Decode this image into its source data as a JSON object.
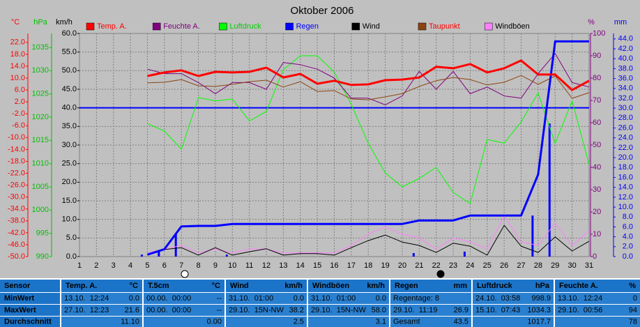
{
  "chart_data": {
    "type": "line",
    "title": "Oktober 2006",
    "x": [
      1,
      2,
      3,
      4,
      5,
      6,
      7,
      8,
      9,
      10,
      11,
      12,
      13,
      14,
      15,
      16,
      17,
      18,
      19,
      20,
      21,
      22,
      23,
      24,
      25,
      26,
      27,
      28,
      29,
      30,
      31
    ],
    "xlim": [
      1,
      31
    ],
    "xticks": [
      1,
      2,
      3,
      4,
      5,
      6,
      7,
      8,
      9,
      10,
      11,
      12,
      13,
      14,
      15,
      16,
      17,
      18,
      19,
      20,
      21,
      22,
      23,
      24,
      25,
      26,
      27,
      28,
      29,
      30,
      31
    ],
    "grid": true,
    "axes": [
      {
        "label": "°C",
        "color": "#ff0000",
        "ylim": [
          -50,
          25
        ],
        "yticks": [
          {
            "value": 22,
            "label": "22.0"
          },
          {
            "value": 18,
            "label": "18.0"
          },
          {
            "value": 14,
            "label": "14.0"
          },
          {
            "value": 10,
            "label": "10.0"
          },
          {
            "value": 6,
            "label": "6.0"
          },
          {
            "value": 2,
            "label": "2.0"
          },
          {
            "value": -2,
            "label": "-2.0"
          },
          {
            "value": -6,
            "label": "-6.0"
          },
          {
            "value": -10,
            "label": "-10.0"
          },
          {
            "value": -14,
            "label": "-14.0"
          },
          {
            "value": -18,
            "label": "-18.0"
          },
          {
            "value": -22,
            "label": "-22.0"
          },
          {
            "value": -26,
            "label": "-26.0"
          },
          {
            "value": -30,
            "label": "-30.0"
          },
          {
            "value": -34,
            "label": "-34.0"
          },
          {
            "value": -38,
            "label": "-38.0"
          },
          {
            "value": -42,
            "label": "-42.0"
          },
          {
            "value": -46,
            "label": "-46.0"
          },
          {
            "value": -50,
            "label": "-50.0"
          }
        ]
      },
      {
        "label": "hPa",
        "color": "#00c000",
        "ylim": [
          990,
          1038
        ],
        "yticks": [
          1035,
          1030,
          1025,
          1020,
          1015,
          1010,
          1005,
          1000,
          995,
          990
        ]
      },
      {
        "label": "km/h",
        "color": "#000000",
        "ylim": [
          0,
          60
        ],
        "grid": true,
        "yticks": [
          {
            "value": 60,
            "label": "60.0"
          },
          {
            "value": 55,
            "label": "55.0"
          },
          {
            "value": 50,
            "label": "50.0"
          },
          {
            "value": 45,
            "label": "45.0"
          },
          {
            "value": 40,
            "label": "40.0"
          },
          {
            "value": 35,
            "label": "35.0"
          },
          {
            "value": 30,
            "label": "30.0"
          },
          {
            "value": 25,
            "label": "25.0"
          },
          {
            "value": 20,
            "label": "20.0"
          },
          {
            "value": 15,
            "label": "15.0"
          },
          {
            "value": 10,
            "label": "10.0"
          },
          {
            "value": 5,
            "label": "5.0"
          },
          {
            "value": 0,
            "label": "0.0"
          }
        ]
      },
      {
        "label": "%",
        "color": "#800080",
        "ylim": [
          0,
          100
        ],
        "yticks": [
          100,
          90,
          80,
          70,
          60,
          50,
          40,
          30,
          20,
          10,
          0
        ]
      },
      {
        "label": "mm",
        "color": "#0000ff",
        "ylim": [
          0,
          45.1
        ],
        "yticks": [
          {
            "value": 44,
            "label": "44.0"
          },
          {
            "value": 42,
            "label": "42.0"
          },
          {
            "value": 40,
            "label": "40.0"
          },
          {
            "value": 38,
            "label": "38.0"
          },
          {
            "value": 36,
            "label": "36.0"
          },
          {
            "value": 34,
            "label": "34.0"
          },
          {
            "value": 32,
            "label": "32.0"
          },
          {
            "value": 30,
            "label": "30.0"
          },
          {
            "value": 28,
            "label": "28.0"
          },
          {
            "value": 26,
            "label": "26.0"
          },
          {
            "value": 24,
            "label": "24.0"
          },
          {
            "value": 22,
            "label": "22.0"
          },
          {
            "value": 20,
            "label": "20.0"
          },
          {
            "value": 18,
            "label": "18.0"
          },
          {
            "value": 16,
            "label": "16.0"
          },
          {
            "value": 14,
            "label": "14.0"
          },
          {
            "value": 12,
            "label": "12.0"
          },
          {
            "value": 10,
            "label": "10.0"
          },
          {
            "value": 8,
            "label": "8.0"
          },
          {
            "value": 6,
            "label": "6.0"
          },
          {
            "value": 4,
            "label": "4.0"
          },
          {
            "value": 2,
            "label": "2.0"
          },
          {
            "value": 0,
            "label": "0.0"
          }
        ]
      }
    ],
    "reference_line": {
      "axis": "km/h",
      "value": 40,
      "color": "#0000ff"
    },
    "bars": {
      "axis": "mm",
      "color": "#0000ff",
      "values": [
        null,
        null,
        null,
        null,
        0.4,
        1.1,
        4.6,
        null,
        null,
        0.4,
        null,
        null,
        null,
        null,
        null,
        null,
        null,
        null,
        null,
        null,
        0.7,
        null,
        null,
        1.0,
        null,
        null,
        null,
        8.3,
        26.9,
        null,
        null
      ]
    },
    "series": [
      {
        "name": "Temp. A.",
        "axis": "°C",
        "color": "#ff0000",
        "text_color": "#ff0000",
        "width": 3,
        "values": [
          null,
          null,
          null,
          null,
          10.7,
          11.9,
          12.6,
          10.7,
          12.1,
          11.9,
          12.1,
          13.5,
          10.2,
          11.4,
          8.1,
          9.1,
          7.7,
          7.9,
          9.3,
          9.5,
          10.2,
          13.8,
          13.3,
          14.7,
          11.9,
          13.3,
          15.9,
          11.2,
          11.2,
          6.0,
          9.1
        ]
      },
      {
        "name": "Feuchte A.",
        "axis": "%",
        "color": "#800080",
        "text_color": "#800080",
        "width": 1,
        "values": [
          null,
          null,
          null,
          null,
          84,
          82,
          82,
          78,
          73,
          78,
          78,
          75,
          87,
          86,
          84,
          80,
          71,
          71,
          68,
          72,
          83,
          75,
          83,
          73,
          76,
          72,
          71,
          82,
          91,
          78,
          76
        ]
      },
      {
        "name": "Luftdruck",
        "axis": "hPa",
        "color": "#00ff00",
        "text_color": "#00d000",
        "width": 1,
        "values": [
          null,
          null,
          null,
          null,
          1018.6,
          1017.0,
          1013.1,
          1024.2,
          1023.5,
          1023.9,
          1019.2,
          1021.2,
          1030.2,
          1033.2,
          1033.2,
          1029.7,
          1022.7,
          1014.4,
          1008.0,
          1005.0,
          1006.8,
          1009.2,
          1003.8,
          1001.4,
          1015.2,
          1014.4,
          1019.0,
          1025.2,
          1014.3,
          1023.5,
          1009.8
        ]
      },
      {
        "name": "Regen",
        "axis": "mm",
        "color": "#0000ff",
        "text_color": "#0000ff",
        "width": 3,
        "values": [
          null,
          null,
          null,
          null,
          0.4,
          1.5,
          6.1,
          6.2,
          6.2,
          6.6,
          6.6,
          6.6,
          6.6,
          6.6,
          6.6,
          6.6,
          6.6,
          6.6,
          6.6,
          6.6,
          7.3,
          7.3,
          7.3,
          8.3,
          8.3,
          8.3,
          8.3,
          16.6,
          43.5,
          43.5,
          43.5
        ]
      },
      {
        "name": "Wind",
        "axis": "km/h",
        "color": "#000000",
        "text_color": "#000000",
        "width": 1,
        "values": [
          null,
          null,
          null,
          null,
          0.4,
          1.9,
          2.4,
          0.4,
          2.4,
          0.4,
          1.3,
          2.1,
          0.4,
          0.8,
          0.8,
          0.4,
          2.4,
          4.3,
          5.8,
          3.9,
          3.0,
          1.1,
          3.6,
          2.8,
          0.4,
          8.4,
          2.8,
          1.1,
          5.3,
          1.5,
          4.1
        ]
      },
      {
        "name": "Taupunkt",
        "axis": "°C",
        "color": "#8b4513",
        "text_color": "#ff0000",
        "width": 1,
        "values": [
          null,
          null,
          null,
          null,
          8.4,
          8.6,
          9.5,
          7.4,
          7.2,
          7.9,
          8.8,
          9.3,
          7.0,
          8.8,
          5.5,
          5.8,
          3.0,
          2.7,
          3.7,
          4.8,
          7.2,
          9.1,
          10.2,
          9.5,
          7.7,
          8.6,
          10.9,
          7.9,
          10.7,
          3.2,
          5.1
        ]
      },
      {
        "name": "Windböen",
        "axis": "km/h",
        "color": "#ff80ff",
        "text_color": "#000000",
        "width": 1,
        "values": [
          null,
          null,
          null,
          null,
          1,
          2,
          3,
          1,
          2,
          1,
          2,
          2,
          1,
          1,
          1,
          1,
          3,
          6,
          8,
          6,
          5,
          2,
          5,
          4,
          2,
          11,
          4,
          3,
          9,
          3,
          7
        ]
      }
    ]
  },
  "table": {
    "headers": [
      {
        "name": "Sensor"
      },
      {
        "name": "Temp. A.",
        "unit": "°C"
      },
      {
        "name": "T.5cm",
        "unit": "°C"
      },
      {
        "name": "Wind",
        "unit": "km/h"
      },
      {
        "name": "Windböen",
        "unit": "km/h"
      },
      {
        "name": "Regen",
        "unit": "mm"
      },
      {
        "name": "Luftdruck",
        "unit": "hPa"
      },
      {
        "name": "Feuchte A.",
        "unit": "%"
      }
    ],
    "rows": [
      {
        "label": "MinWert",
        "cells": [
          {
            "left": "13.10.  12:24",
            "right": "0.0"
          },
          {
            "left": "00.00.  00:00",
            "right": "--"
          },
          {
            "left": "31.10.  01:00",
            "right": "0.0"
          },
          {
            "left": "31.10.  01:00",
            "right": "0.0"
          },
          {
            "left": "Regentage: 8"
          },
          {
            "left": "24.10.  03:58",
            "right": "998.9"
          },
          {
            "left": "13.10.  12:24",
            "right": "0"
          }
        ]
      },
      {
        "label": "MaxWert",
        "cells": [
          {
            "left": "27.10.  12:23",
            "right": "21.6"
          },
          {
            "left": "00.00.  00:00",
            "right": "--"
          },
          {
            "left": "29.10.  15N-NW",
            "right": "38.2"
          },
          {
            "left": "29.10.  15N-NW",
            "right": "58.0"
          },
          {
            "left": "29.10.  11:19",
            "right": "26.9"
          },
          {
            "left": "15.10.  07:43",
            "right": "1034.3"
          },
          {
            "left": "29.10.  00:56",
            "right": "94"
          }
        ]
      },
      {
        "label": "Durchschnitt",
        "cells": [
          {
            "right": "11.10"
          },
          {
            "right": "0.00"
          },
          {
            "right": "2.5"
          },
          {
            "right": "3.1"
          },
          {
            "left": "Gesamt",
            "right": "43.5"
          },
          {
            "right": "1017.7"
          },
          {
            "right": "78"
          }
        ]
      }
    ]
  }
}
